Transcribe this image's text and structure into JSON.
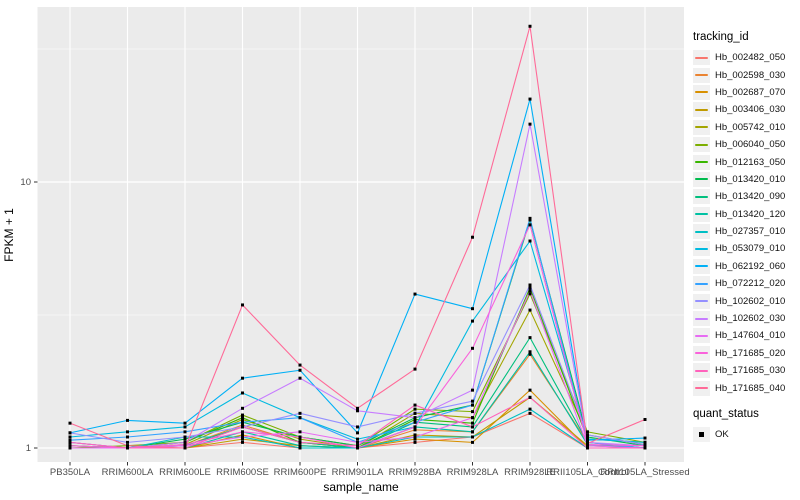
{
  "axes": {
    "x_title": "sample_name",
    "y_title": "FPKM + 1"
  },
  "legend": {
    "tracking_title": "tracking_id",
    "quant_title": "quant_status",
    "quant_value": "OK"
  },
  "colors": {
    "panel_bg": "#EBEBEB",
    "grid": "#FFFFFF",
    "tick_text": "#4D4D4D",
    "axis_title_text": "#000000",
    "point": "#000000",
    "legend_key_bg": "#F0F0F0"
  },
  "chart_data": {
    "type": "line",
    "title": "",
    "xlabel": "sample_name",
    "ylabel": "FPKM + 1",
    "y_scale": "log10",
    "ylim": [
      1,
      44
    ],
    "y_breaks": [
      1,
      10
    ],
    "y_minor_breaks": [
      3.162,
      31.623
    ],
    "grid": true,
    "legend_position": "right",
    "point_shape": "filled-square",
    "quant_status_legend": {
      "label": "OK",
      "marker": "black-square"
    },
    "categories": [
      "PB350LA",
      "RRIM600LA",
      "RRIM600LE",
      "RRIM600SE",
      "RRIM600PE",
      "RRIM901LA",
      "RRIM928BA",
      "RRIM928LA",
      "RRIM928LE",
      "RRII105LA_Control",
      "RRII105LA_Stressed"
    ],
    "series": [
      {
        "name": "Hb_002482_050",
        "color": "#F8766D",
        "quant_status": "OK",
        "values": [
          1.05,
          1.0,
          1.0,
          1.05,
          1.0,
          1.0,
          1.05,
          1.1,
          1.35,
          1.0,
          1.0
        ]
      },
      {
        "name": "Hb_002598_030",
        "color": "#EA8331",
        "quant_status": "OK",
        "values": [
          1.02,
          1.0,
          1.02,
          1.22,
          1.05,
          1.0,
          1.17,
          1.15,
          2.25,
          1.05,
          1.0
        ]
      },
      {
        "name": "Hb_002687_070",
        "color": "#D89000",
        "quant_status": "OK",
        "values": [
          1.0,
          1.0,
          1.0,
          1.12,
          1.0,
          1.0,
          1.08,
          1.05,
          1.65,
          1.0,
          1.0
        ]
      },
      {
        "name": "Hb_003406_030",
        "color": "#C09B00",
        "quant_status": "OK",
        "values": [
          1.0,
          1.0,
          1.0,
          1.08,
          1.02,
          1.0,
          1.12,
          1.1,
          1.55,
          1.02,
          1.0
        ]
      },
      {
        "name": "Hb_005742_010",
        "color": "#A3A500",
        "quant_status": "OK",
        "values": [
          1.0,
          1.0,
          1.03,
          1.28,
          1.08,
          1.0,
          1.35,
          1.3,
          3.3,
          1.12,
          1.03
        ]
      },
      {
        "name": "Hb_006040_050",
        "color": "#7CAE00",
        "quant_status": "OK",
        "values": [
          1.0,
          1.02,
          1.05,
          1.33,
          1.1,
          1.02,
          1.4,
          1.37,
          3.8,
          1.15,
          1.05
        ]
      },
      {
        "name": "Hb_012163_050",
        "color": "#39B600",
        "quant_status": "OK",
        "values": [
          1.0,
          1.0,
          1.05,
          1.3,
          1.05,
          1.0,
          1.28,
          1.24,
          4.0,
          1.08,
          1.05
        ]
      },
      {
        "name": "Hb_013420_010",
        "color": "#00BB4E",
        "quant_status": "OK",
        "values": [
          1.02,
          1.0,
          1.08,
          1.25,
          1.1,
          1.02,
          1.3,
          1.45,
          7.2,
          1.1,
          1.02
        ]
      },
      {
        "name": "Hb_013420_090",
        "color": "#00BF7D",
        "quant_status": "OK",
        "values": [
          1.0,
          1.0,
          1.02,
          1.2,
          1.05,
          1.0,
          1.25,
          1.2,
          2.6,
          1.05,
          1.0
        ]
      },
      {
        "name": "Hb_013420_120",
        "color": "#00C1A3",
        "quant_status": "OK",
        "values": [
          1.0,
          1.0,
          1.0,
          1.15,
          1.02,
          1.0,
          1.2,
          1.15,
          2.3,
          1.03,
          1.0
        ]
      },
      {
        "name": "Hb_027357_010",
        "color": "#00BFC4",
        "quant_status": "OK",
        "values": [
          1.05,
          1.0,
          1.1,
          1.1,
          1.0,
          1.0,
          1.1,
          1.1,
          1.4,
          1.0,
          1.0
        ]
      },
      {
        "name": "Hb_053079_010",
        "color": "#00BAE0",
        "quant_status": "OK",
        "values": [
          1.1,
          1.15,
          1.2,
          1.61,
          1.3,
          1.08,
          1.2,
          3.0,
          6.0,
          1.08,
          1.05
        ]
      },
      {
        "name": "Hb_062192_060",
        "color": "#00B0F6",
        "quant_status": "OK",
        "values": [
          1.14,
          1.27,
          1.24,
          1.83,
          1.96,
          1.14,
          3.79,
          3.34,
          20.5,
          1.07,
          1.09
        ]
      },
      {
        "name": "Hb_072212_020",
        "color": "#35A2FF",
        "quant_status": "OK",
        "values": [
          1.07,
          1.1,
          1.15,
          1.25,
          1.3,
          1.05,
          1.25,
          1.45,
          7.3,
          1.05,
          1.0
        ]
      },
      {
        "name": "Hb_102602_010",
        "color": "#9590FF",
        "quant_status": "OK",
        "values": [
          1.14,
          1.05,
          1.1,
          1.2,
          1.35,
          1.2,
          1.35,
          1.5,
          4.1,
          1.12,
          1.03
        ]
      },
      {
        "name": "Hb_102602_030",
        "color": "#C77CFF",
        "quant_status": "OK",
        "values": [
          1.05,
          1.0,
          1.05,
          1.41,
          1.83,
          1.38,
          1.3,
          1.65,
          16.5,
          1.05,
          1.02
        ]
      },
      {
        "name": "Hb_147604_010",
        "color": "#E76BF3",
        "quant_status": "OK",
        "values": [
          1.0,
          1.0,
          1.02,
          1.1,
          1.15,
          1.05,
          1.1,
          1.3,
          3.9,
          1.02,
          1.0
        ]
      },
      {
        "name": "Hb_171685_020",
        "color": "#FA62DB",
        "quant_status": "OK",
        "values": [
          1.02,
          1.0,
          1.03,
          1.15,
          1.1,
          1.0,
          1.2,
          2.37,
          6.9,
          1.03,
          1.02
        ]
      },
      {
        "name": "Hb_171685_030",
        "color": "#FF62BC",
        "quant_status": "OK",
        "values": [
          1.05,
          1.0,
          1.0,
          1.2,
          1.05,
          1.02,
          1.45,
          1.2,
          1.55,
          1.0,
          1.0
        ]
      },
      {
        "name": "Hb_171685_040",
        "color": "#FF6A98",
        "quant_status": "OK",
        "values": [
          1.24,
          1.02,
          1.0,
          3.45,
          2.05,
          1.41,
          1.98,
          6.2,
          38.5,
          1.04,
          1.28
        ]
      }
    ]
  }
}
